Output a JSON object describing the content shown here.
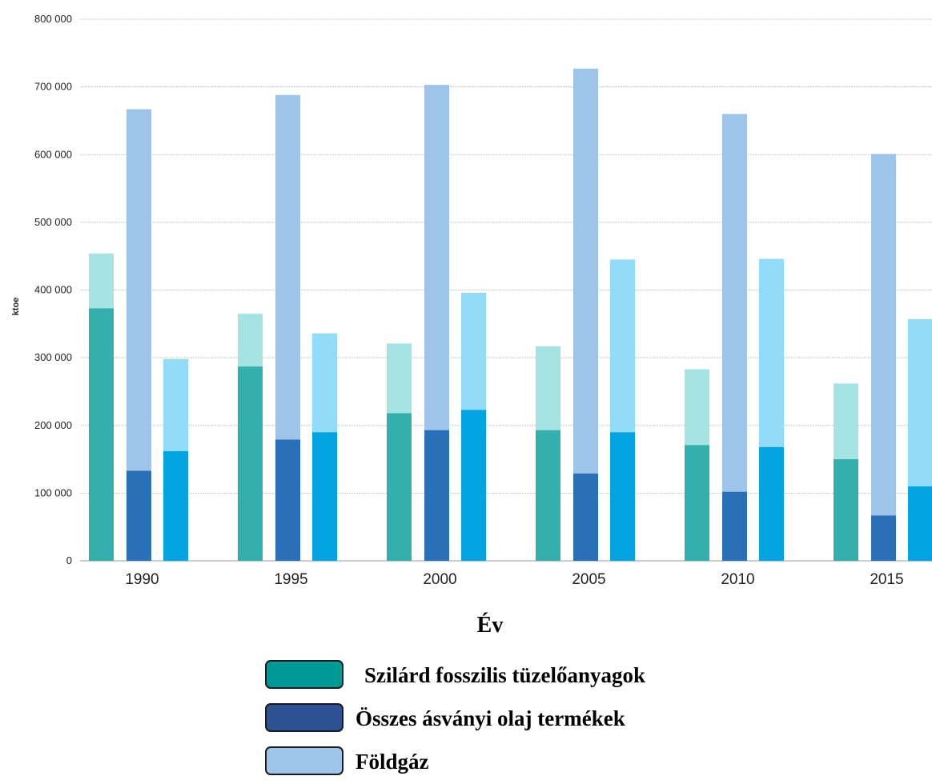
{
  "chart_data": {
    "type": "bar",
    "stacked": true,
    "xlabel": "Év",
    "ylabel": "ktoe",
    "ylim": [
      0,
      800000
    ],
    "yticks": [
      "0",
      "100 000",
      "200 000",
      "300 000",
      "400 000",
      "500 000",
      "600 000",
      "700 000",
      "800 000"
    ],
    "grid": true,
    "categories": [
      "1990",
      "1995",
      "2000",
      "2005",
      "2010",
      "2015"
    ],
    "groups": [
      {
        "name": "Szilárd fosszilis tüzelőanyagok",
        "bottom_color": "#33b0ad",
        "top_color": "#a6e4e4",
        "bottom": [
          373000,
          287000,
          218000,
          193000,
          171000,
          150000
        ],
        "total": [
          454000,
          365000,
          321000,
          317000,
          283000,
          262000
        ]
      },
      {
        "name": "Összes ásványi olaj termékek",
        "bottom_color": "#2a70b8",
        "top_color": "#9fc4ea",
        "bottom": [
          133000,
          179000,
          193000,
          129000,
          102000,
          67000
        ],
        "total": [
          667000,
          688000,
          703000,
          727000,
          660000,
          601000
        ]
      },
      {
        "name": "Földgáz",
        "bottom_color": "#04a4e3",
        "top_color": "#92dcfa",
        "bottom": [
          162000,
          190000,
          223000,
          190000,
          168000,
          110000
        ],
        "total": [
          298000,
          336000,
          396000,
          445000,
          446000,
          357000
        ]
      }
    ],
    "legend": {
      "placement": "bottom",
      "items": [
        {
          "label": "Szilárd fosszilis tüzelőanyagok",
          "color": "#009a96"
        },
        {
          "label": "Összes ásványi olaj termékek",
          "color": "#2d5293"
        },
        {
          "label": "Földgáz",
          "color": "#9fc4ea"
        }
      ]
    }
  }
}
